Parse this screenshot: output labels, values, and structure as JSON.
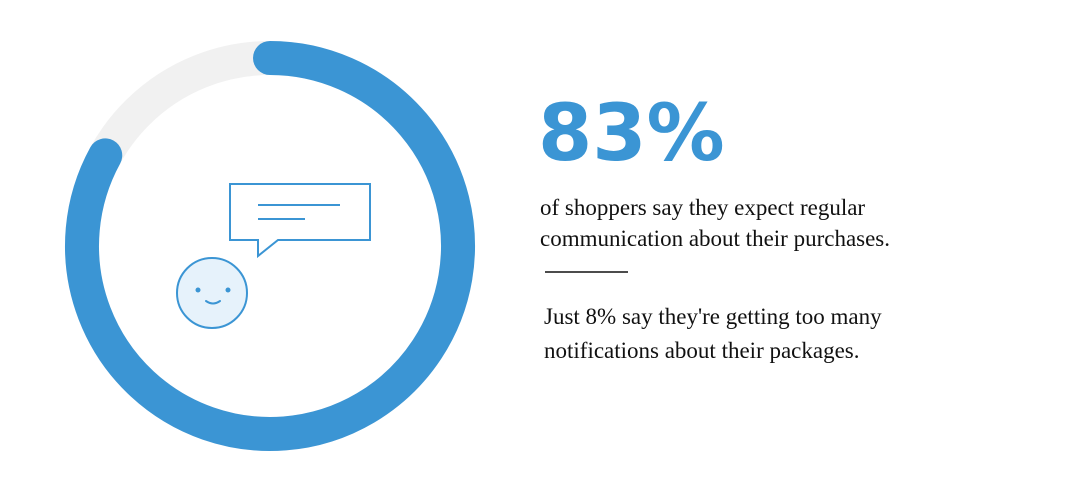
{
  "chart_data": {
    "type": "gauge",
    "values": [
      83
    ],
    "value_labels": [
      "83%"
    ],
    "ylim": [
      0,
      100
    ],
    "color": "#3b95d4",
    "track_color": "#f1f1f1",
    "description": [
      "of shoppers say they expect regular",
      "communication about their purchases."
    ],
    "note": [
      "Just 8% say they're getting too many",
      "notifications about their packages."
    ]
  }
}
